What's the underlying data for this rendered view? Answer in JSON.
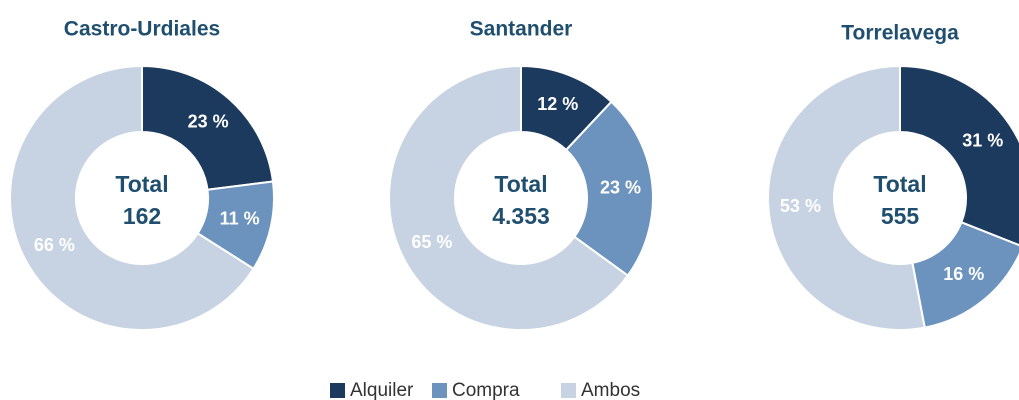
{
  "chart_data": [
    {
      "type": "pie",
      "title": "Castro-Urdiales",
      "center_text": [
        "Total",
        "162"
      ],
      "values": [
        23,
        11,
        66
      ],
      "value_labels": [
        "23 %",
        "11 %",
        "66 %"
      ]
    },
    {
      "type": "pie",
      "title": "Santander",
      "center_text": [
        "Total",
        "4.353"
      ],
      "values": [
        12,
        23,
        65
      ],
      "value_labels": [
        "12 %",
        "23 %",
        "65 %"
      ]
    },
    {
      "type": "pie",
      "title": "Torrelavega",
      "center_text": [
        "Total",
        "555"
      ],
      "values": [
        31,
        16,
        53
      ],
      "value_labels": [
        "31 %",
        "16 %",
        "53 %"
      ]
    }
  ],
  "legend": {
    "labels": [
      "Alquiler",
      "Compra",
      "Ambos"
    ],
    "colors": [
      "#1c3a5e",
      "#6b93bd",
      "#c7d3e2"
    ]
  }
}
